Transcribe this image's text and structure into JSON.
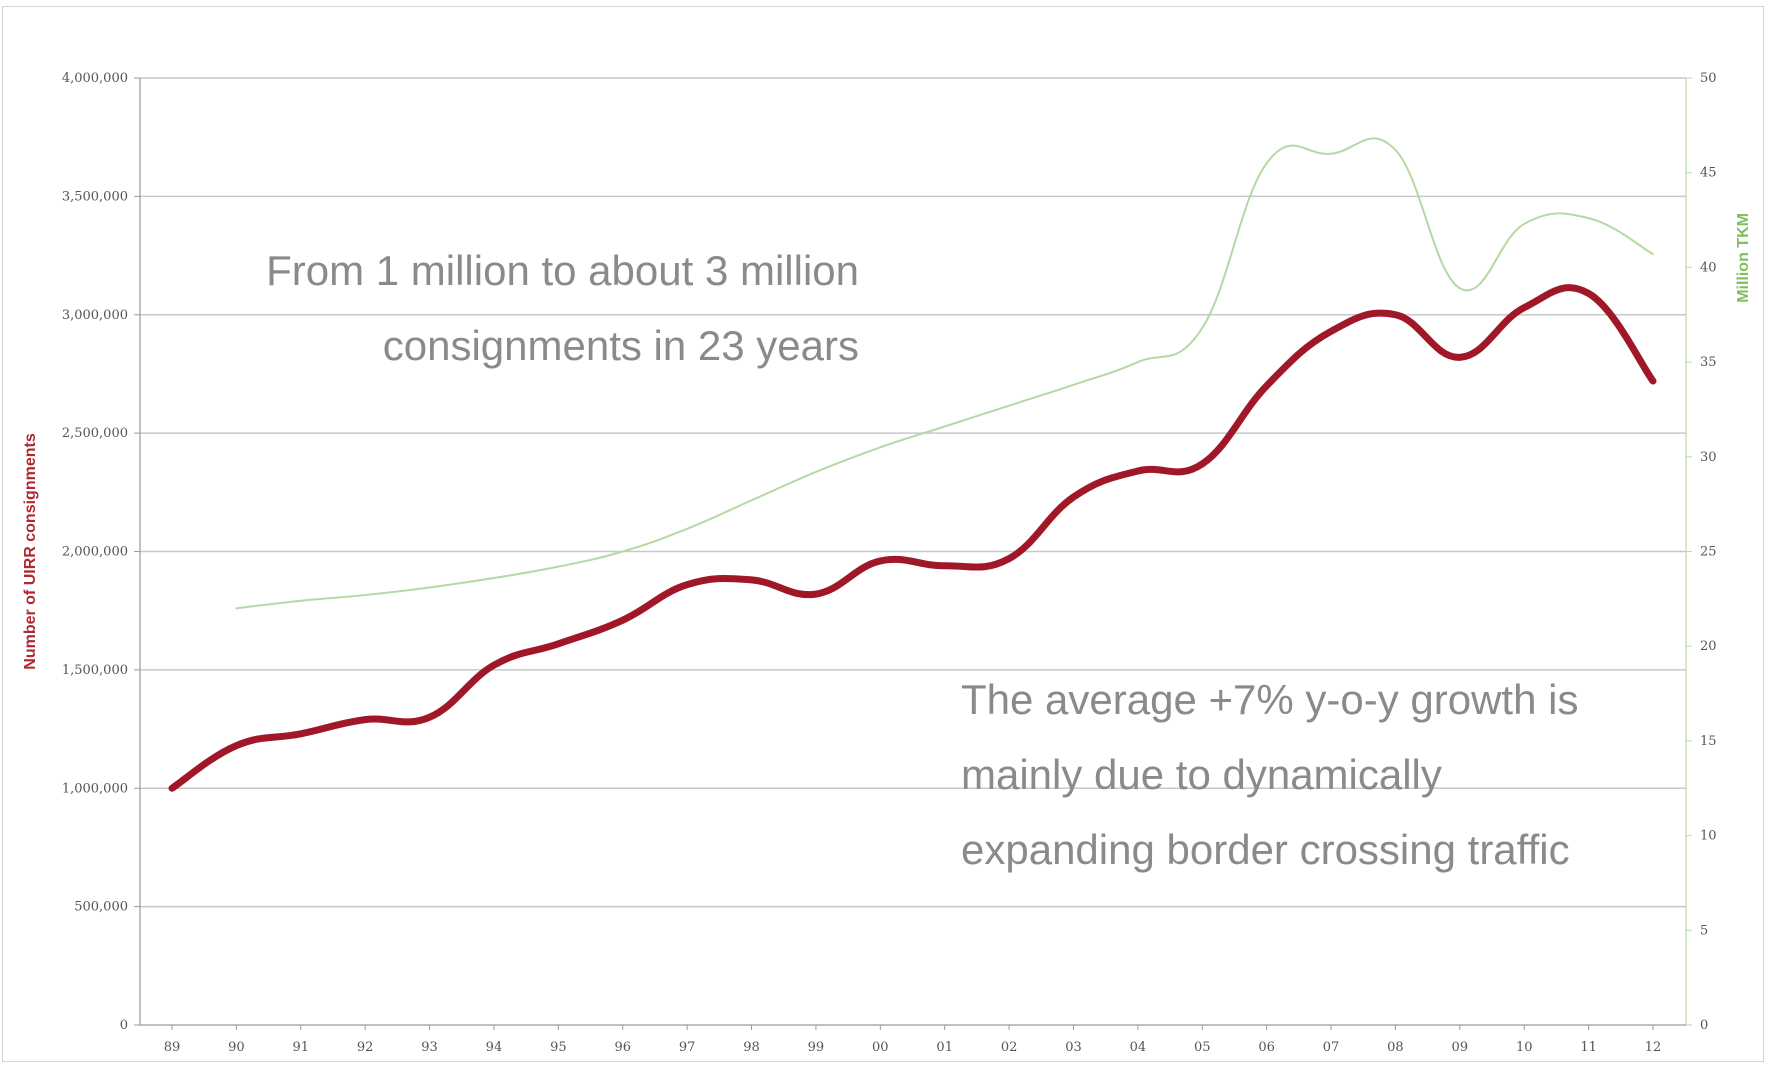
{
  "chart_data": {
    "type": "line",
    "categories": [
      "89",
      "90",
      "91",
      "92",
      "93",
      "94",
      "95",
      "96",
      "97",
      "98",
      "99",
      "00",
      "01",
      "02",
      "03",
      "04",
      "05",
      "06",
      "07",
      "08",
      "09",
      "10",
      "11",
      "12"
    ],
    "ylabel": "Number of UIRR consignments",
    "ylabel_right": "Million TKM",
    "ylim": [
      0,
      4000000
    ],
    "ylim_right": [
      0,
      50
    ],
    "y_ticks": [
      "0",
      "500,000",
      "1,000,000",
      "1,500,000",
      "2,000,000",
      "2,500,000",
      "3,000,000",
      "3,500,000",
      "4,000,000"
    ],
    "y_ticks_right": [
      "0",
      "5",
      "10",
      "15",
      "20",
      "25",
      "30",
      "35",
      "40",
      "45",
      "50"
    ],
    "grid": true,
    "series": [
      {
        "axis": "left",
        "color": "#a01828",
        "values": [
          1000000,
          1180000,
          1230000,
          1290000,
          1300000,
          1520000,
          1610000,
          1710000,
          1860000,
          1880000,
          1820000,
          1960000,
          1940000,
          1970000,
          2230000,
          2340000,
          2370000,
          2700000,
          2930000,
          3000000,
          2820000,
          3030000,
          3090000,
          2720000
        ]
      },
      {
        "axis": "right",
        "color": "#b5d9a2",
        "values": [
          null,
          22.0,
          22.4,
          22.7,
          23.1,
          23.6,
          24.2,
          25.0,
          26.2,
          27.7,
          29.2,
          30.5,
          31.6,
          32.7,
          33.8,
          35.0,
          36.8,
          45.5,
          46.0,
          46.2,
          38.9,
          42.3,
          42.6,
          40.7
        ]
      }
    ]
  },
  "annotations": {
    "growth_line1": "From 1 million to  about 3 million",
    "growth_line2": "consignments in 23 years",
    "reason_line1": "The average  +7% y-o-y growth is",
    "reason_line2": "mainly due to  dynamically",
    "reason_line3": "expanding border crossing traffic"
  }
}
